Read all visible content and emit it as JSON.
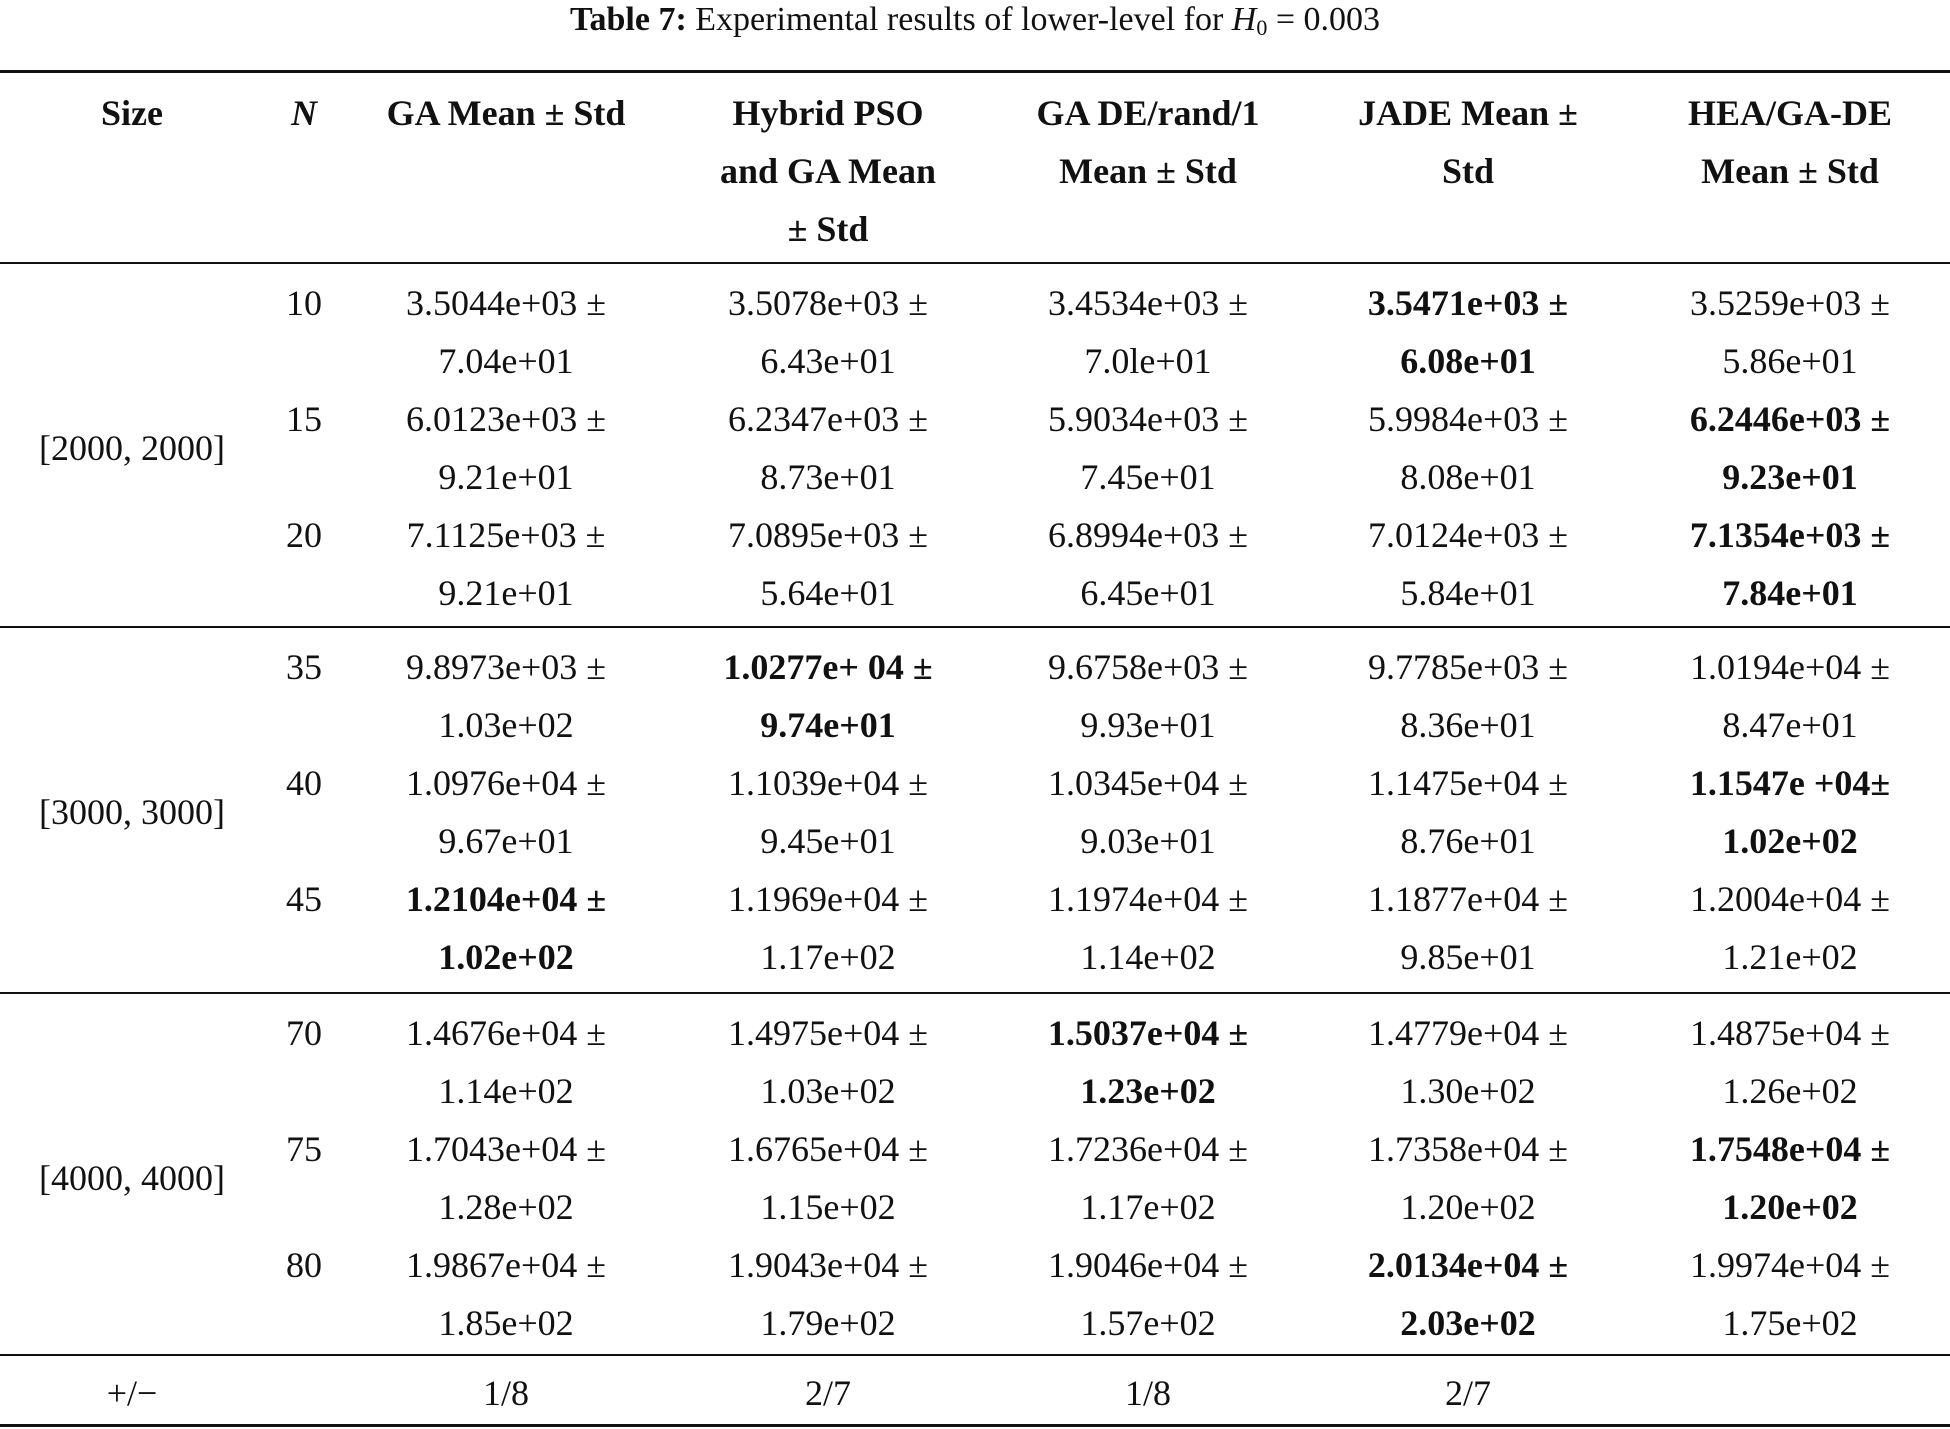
{
  "caption": {
    "label": "Table 7:",
    "text": "Experimental results of lower-level for",
    "var": "H",
    "var_sub": "0",
    "tail": "= 0.003"
  },
  "columns": [
    {
      "label": "Size"
    },
    {
      "label": "N"
    },
    {
      "label": "GA Mean ± Std"
    },
    {
      "label": "Hybrid PSO and GA Mean ± Std",
      "lines": [
        "Hybrid PSO",
        "and GA Mean",
        "± Std"
      ]
    },
    {
      "label": "GA DE/rand/1 Mean ± Std",
      "lines": [
        "GA DE/rand/1",
        "Mean ± Std"
      ]
    },
    {
      "label": "JADE Mean ± Std",
      "lines": [
        "JADE Mean ±",
        "Std"
      ]
    },
    {
      "label": "HEA/GA-DE Mean ± Std",
      "lines": [
        "HEA/GA-DE",
        "Mean ± Std"
      ]
    }
  ],
  "groups": [
    {
      "size": "[2000, 2000]",
      "rows": [
        {
          "n": "10",
          "cells": [
            {
              "mean": "3.5044e+03 ±",
              "std": "7.04e+01",
              "best": false
            },
            {
              "mean": "3.5078e+03 ±",
              "std": "6.43e+01",
              "best": false
            },
            {
              "mean": "3.4534e+03 ±",
              "std": "7.0le+01",
              "best": false
            },
            {
              "mean": "3.5471e+03 ±",
              "std": "6.08e+01",
              "best": true
            },
            {
              "mean": "3.5259e+03 ±",
              "std": "5.86e+01",
              "best": false
            }
          ]
        },
        {
          "n": "15",
          "cells": [
            {
              "mean": "6.0123e+03 ±",
              "std": "9.21e+01",
              "best": false
            },
            {
              "mean": "6.2347e+03 ±",
              "std": "8.73e+01",
              "best": false
            },
            {
              "mean": "5.9034e+03 ±",
              "std": "7.45e+01",
              "best": false
            },
            {
              "mean": "5.9984e+03 ±",
              "std": "8.08e+01",
              "best": false
            },
            {
              "mean": "6.2446e+03 ±",
              "std": "9.23e+01",
              "best": true
            }
          ]
        },
        {
          "n": "20",
          "cells": [
            {
              "mean": "7.1125e+03 ±",
              "std": "9.21e+01",
              "best": false
            },
            {
              "mean": "7.0895e+03 ±",
              "std": "5.64e+01",
              "best": false
            },
            {
              "mean": "6.8994e+03 ±",
              "std": "6.45e+01",
              "best": false
            },
            {
              "mean": "7.0124e+03 ±",
              "std": "5.84e+01",
              "best": false
            },
            {
              "mean": "7.1354e+03 ±",
              "std": "7.84e+01",
              "best": true
            }
          ]
        }
      ]
    },
    {
      "size": "[3000, 3000]",
      "rows": [
        {
          "n": "35",
          "cells": [
            {
              "mean": "9.8973e+03 ±",
              "std": "1.03e+02",
              "best": false
            },
            {
              "mean": "1.0277e+ 04 ±",
              "std": "9.74e+01",
              "best": true
            },
            {
              "mean": "9.6758e+03 ±",
              "std": "9.93e+01",
              "best": false
            },
            {
              "mean": "9.7785e+03 ±",
              "std": "8.36e+01",
              "best": false
            },
            {
              "mean": "1.0194e+04 ±",
              "std": "8.47e+01",
              "best": false
            }
          ]
        },
        {
          "n": "40",
          "cells": [
            {
              "mean": "1.0976e+04 ±",
              "std": "9.67e+01",
              "best": false
            },
            {
              "mean": "1.1039e+04 ±",
              "std": "9.45e+01",
              "best": false
            },
            {
              "mean": "1.0345e+04 ±",
              "std": "9.03e+01",
              "best": false
            },
            {
              "mean": "1.1475e+04 ±",
              "std": "8.76e+01",
              "best": false
            },
            {
              "mean": "1.1547e +04±",
              "std": "1.02e+02",
              "best": true
            }
          ]
        },
        {
          "n": "45",
          "cells": [
            {
              "mean": "1.2104e+04 ±",
              "std": "1.02e+02",
              "best": true
            },
            {
              "mean": "1.1969e+04 ±",
              "std": "1.17e+02",
              "best": false
            },
            {
              "mean": "1.1974e+04 ±",
              "std": "1.14e+02",
              "best": false
            },
            {
              "mean": "1.1877e+04 ±",
              "std": "9.85e+01",
              "best": false
            },
            {
              "mean": "1.2004e+04 ±",
              "std": "1.21e+02",
              "best": false
            }
          ]
        }
      ]
    },
    {
      "size": "[4000, 4000]",
      "rows": [
        {
          "n": "70",
          "cells": [
            {
              "mean": "1.4676e+04 ±",
              "std": "1.14e+02",
              "best": false
            },
            {
              "mean": "1.4975e+04 ±",
              "std": "1.03e+02",
              "best": false
            },
            {
              "mean": "1.5037e+04 ±",
              "std": "1.23e+02",
              "best": true
            },
            {
              "mean": "1.4779e+04 ±",
              "std": "1.30e+02",
              "best": false
            },
            {
              "mean": "1.4875e+04 ±",
              "std": "1.26e+02",
              "best": false
            }
          ]
        },
        {
          "n": "75",
          "cells": [
            {
              "mean": "1.7043e+04 ±",
              "std": "1.28e+02",
              "best": false
            },
            {
              "mean": "1.6765e+04 ±",
              "std": "1.15e+02",
              "best": false
            },
            {
              "mean": "1.7236e+04 ±",
              "std": "1.17e+02",
              "best": false
            },
            {
              "mean": "1.7358e+04 ±",
              "std": "1.20e+02",
              "best": false
            },
            {
              "mean": "1.7548e+04 ±",
              "std": "1.20e+02",
              "best": true
            }
          ]
        },
        {
          "n": "80",
          "cells": [
            {
              "mean": "1.9867e+04 ±",
              "std": "1.85e+02",
              "best": false
            },
            {
              "mean": "1.9043e+04 ±",
              "std": "1.79e+02",
              "best": false
            },
            {
              "mean": "1.9046e+04 ±",
              "std": "1.57e+02",
              "best": false
            },
            {
              "mean": "2.0134e+04 ±",
              "std": "2.03e+02",
              "best": true
            },
            {
              "mean": "1.9974e+04 ±",
              "std": "1.75e+02",
              "best": false
            }
          ]
        }
      ]
    }
  ],
  "summary": {
    "label": "+/−",
    "values": [
      "1/8",
      "2/7",
      "1/8",
      "2/7"
    ]
  }
}
